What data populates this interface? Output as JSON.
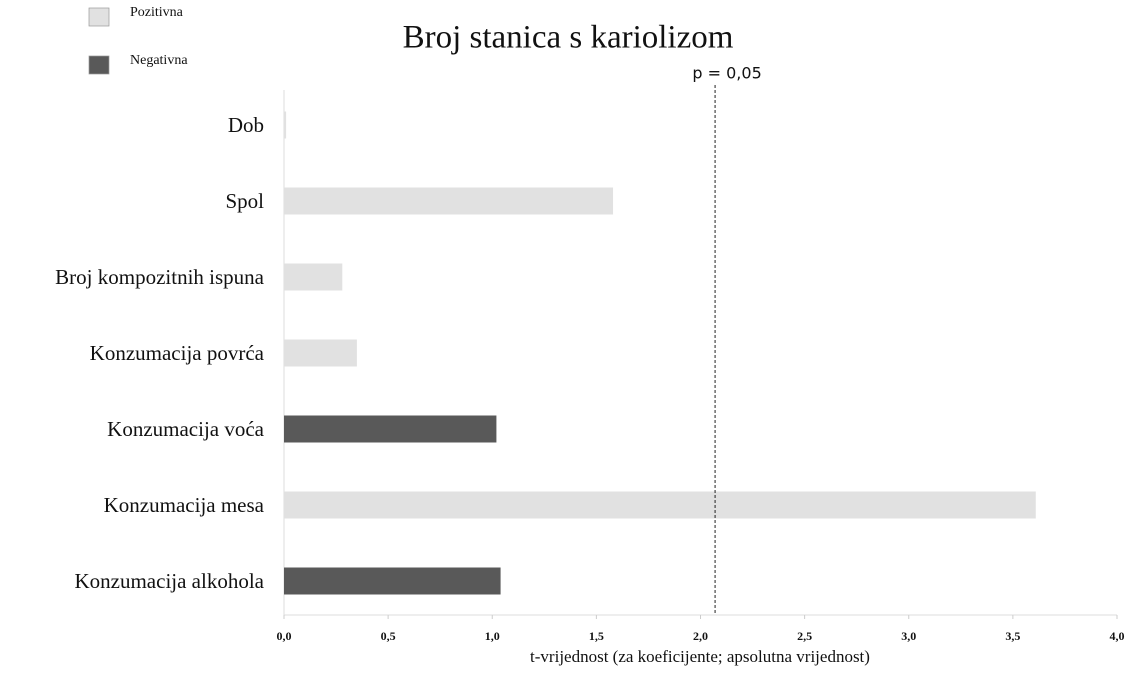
{
  "chart_data": {
    "type": "bar",
    "orientation": "horizontal",
    "title": "Broj stanica s kariolizom",
    "x_label": "t-vrijednost (za koeficijente; apsolutna vrijednost)",
    "categories": [
      "Dob",
      "Spol",
      "Broj kompozitnih ispuna",
      "Konzumacija povrća",
      "Konzumacija voća",
      "Konzumacija mesa",
      "Konzumacija alkohola"
    ],
    "series": [
      {
        "name": "Pozitivna",
        "color": "#e1e1e1",
        "values": [
          0.01,
          1.58,
          0.28,
          0.35,
          null,
          3.61,
          null
        ]
      },
      {
        "name": "Negativna",
        "color": "#595959",
        "values": [
          null,
          null,
          null,
          null,
          1.02,
          null,
          1.04
        ]
      }
    ],
    "xlim": [
      0,
      4
    ],
    "xticks": [
      {
        "value": 0,
        "label": "0,0"
      },
      {
        "value": 0.5,
        "label": "0,5"
      },
      {
        "value": 1,
        "label": "1,0"
      },
      {
        "value": 1.5,
        "label": "1,5"
      },
      {
        "value": 2,
        "label": "2,0"
      },
      {
        "value": 2.5,
        "label": "2,5"
      },
      {
        "value": 3,
        "label": "3,0"
      },
      {
        "value": 3.5,
        "label": "3,5"
      },
      {
        "value": 4,
        "label": "4,0"
      }
    ],
    "reference_line": {
      "value": 2.07,
      "label": "p = 0,05"
    },
    "legend": "top-left"
  }
}
